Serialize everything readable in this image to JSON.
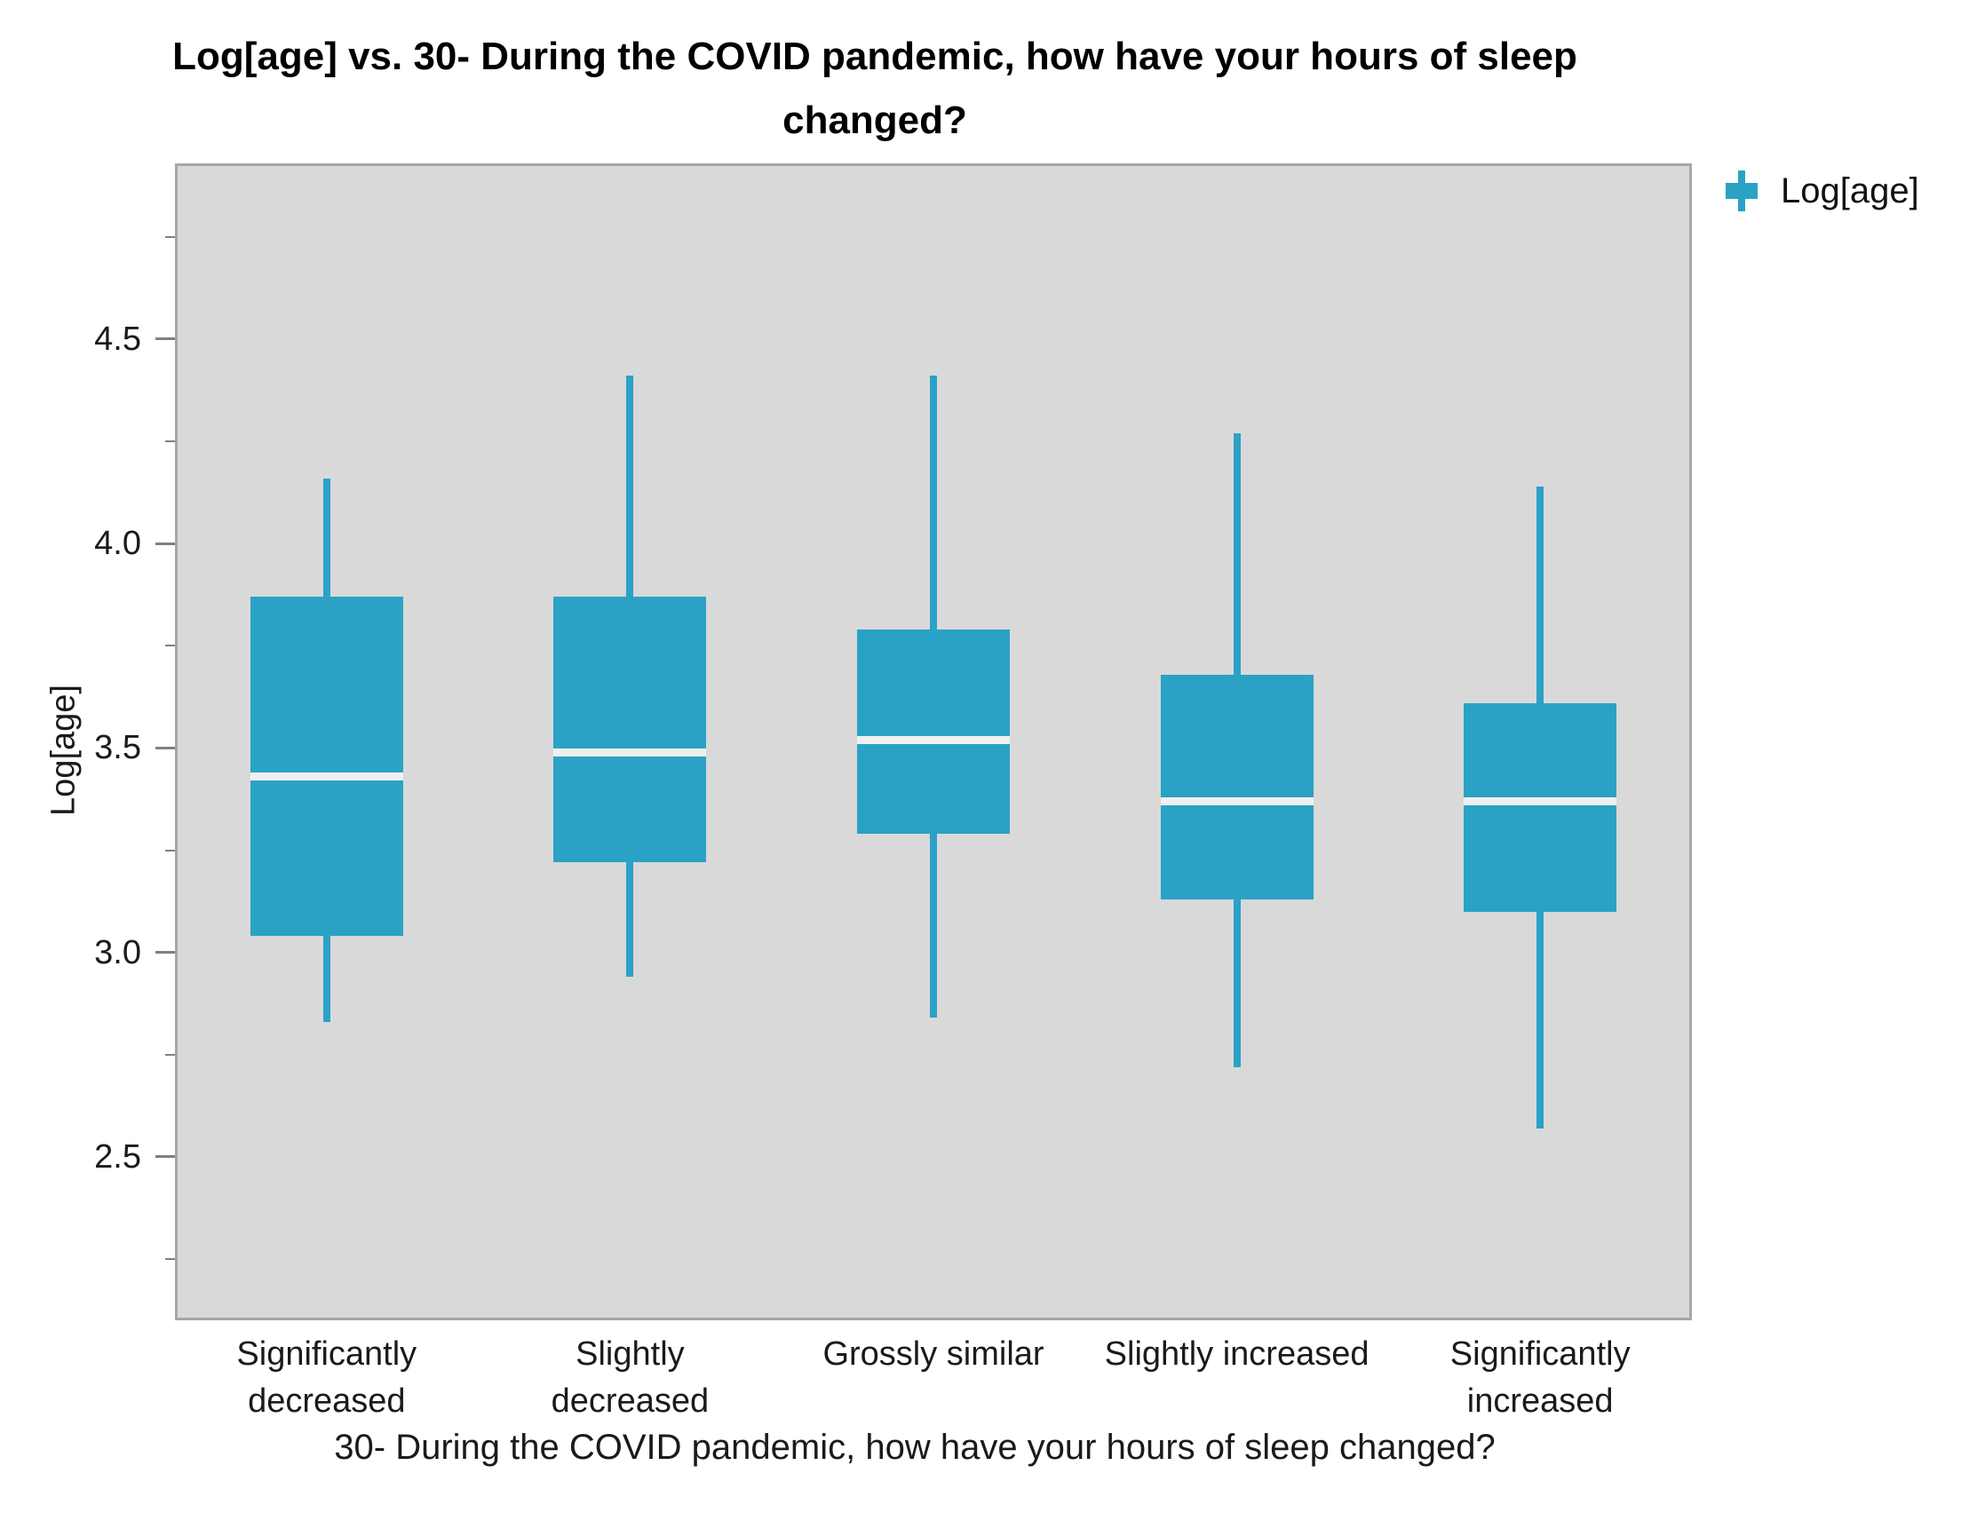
{
  "title": "Log[age] vs. 30- During the COVID pandemic, how have your hours of sleep changed?",
  "title_lines": [
    "Log[age] vs. 30- During the COVID pandemic, how have your hours of sleep",
    "changed?"
  ],
  "legend": {
    "label": "Log[age]",
    "swatch_color": "#2AA2C6",
    "position": "top-right"
  },
  "chart_data": {
    "type": "box",
    "title": "Log[age] vs. 30- During the COVID pandemic, how have your hours of sleep changed?",
    "xlabel": "30- During the COVID pandemic, how have your hours of sleep changed?",
    "ylabel": "Log[age]",
    "ylim": [
      2.1,
      4.93
    ],
    "grid": false,
    "plot_background": "#D9D9D9",
    "colors": {
      "box_fill": "#2AA2C6",
      "whisker": "#2AA2C6",
      "median_line": "#F0F0F0",
      "plot_border": "#A6A6A6",
      "tick": "#808080",
      "text": "#000000"
    },
    "yticks": [
      {
        "value": 4.5,
        "label": "4.5"
      },
      {
        "value": 4.0,
        "label": "4.0"
      },
      {
        "value": 3.5,
        "label": "3.5"
      },
      {
        "value": 3.0,
        "label": "3.0"
      },
      {
        "value": 2.5,
        "label": "2.5"
      }
    ],
    "yticks_minor": [
      4.75,
      4.25,
      3.75,
      3.25,
      2.75,
      2.25
    ],
    "categories": [
      "Significantly decreased",
      "Slightly decreased",
      "Grossly similar",
      "Slightly increased",
      "Significantly increased"
    ],
    "category_label_lines": [
      [
        "Significantly",
        "decreased"
      ],
      [
        "Slightly",
        "decreased"
      ],
      [
        "Grossly similar"
      ],
      [
        "Slightly increased"
      ],
      [
        "Significantly",
        "increased"
      ]
    ],
    "series": [
      {
        "name": "Log[age]",
        "color": "#2AA2C6",
        "boxes": [
          {
            "category": "Significantly decreased",
            "min": 2.83,
            "q1": 3.04,
            "median": 3.43,
            "q3": 3.87,
            "max": 4.16
          },
          {
            "category": "Slightly decreased",
            "min": 2.94,
            "q1": 3.22,
            "median": 3.49,
            "q3": 3.87,
            "max": 4.41
          },
          {
            "category": "Grossly similar",
            "min": 2.84,
            "q1": 3.29,
            "median": 3.52,
            "q3": 3.79,
            "max": 4.41
          },
          {
            "category": "Slightly increased",
            "min": 2.72,
            "q1": 3.13,
            "median": 3.37,
            "q3": 3.68,
            "max": 4.27
          },
          {
            "category": "Significantly increased",
            "min": 2.57,
            "q1": 3.1,
            "median": 3.37,
            "q3": 3.61,
            "max": 4.14
          }
        ]
      }
    ],
    "legend_entries": [
      "Log[age]"
    ]
  }
}
